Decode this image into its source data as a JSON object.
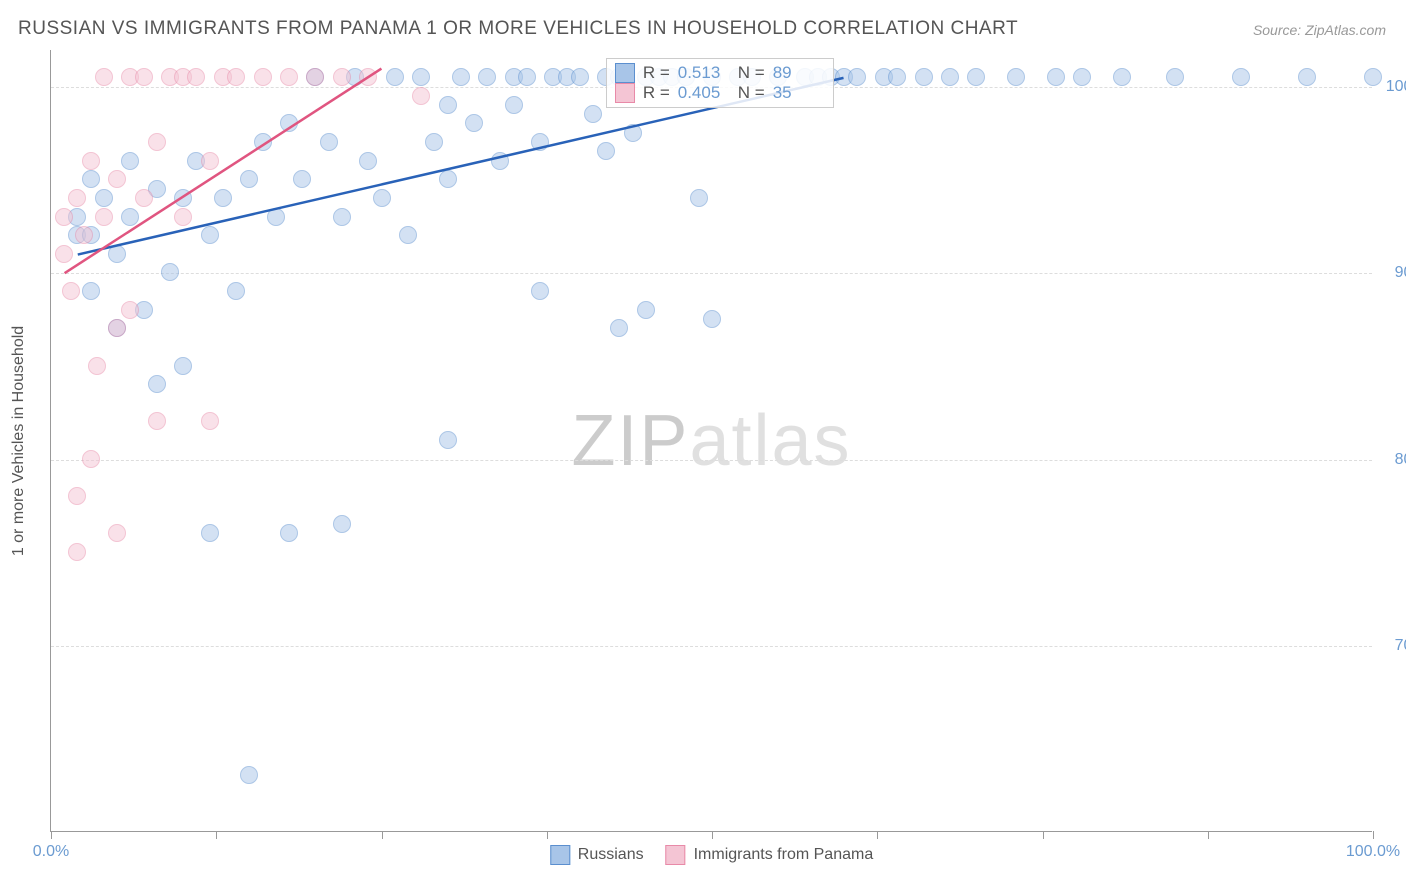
{
  "title": "RUSSIAN VS IMMIGRANTS FROM PANAMA 1 OR MORE VEHICLES IN HOUSEHOLD CORRELATION CHART",
  "source": "Source: ZipAtlas.com",
  "ylabel": "1 or more Vehicles in Household",
  "watermark": {
    "zip": "ZIP",
    "atlas": "atlas"
  },
  "chart": {
    "type": "scatter",
    "xlim": [
      0,
      100
    ],
    "ylim": [
      60,
      102
    ],
    "yticks": [
      70,
      80,
      90,
      100
    ],
    "ytick_labels": [
      "70.0%",
      "80.0%",
      "90.0%",
      "100.0%"
    ],
    "xticks": [
      0,
      12.5,
      25,
      37.5,
      50,
      62.5,
      75,
      87.5,
      100
    ],
    "xtick_labels": {
      "0": "0.0%",
      "100": "100.0%"
    },
    "background_color": "#ffffff",
    "grid_color": "#dddddd",
    "marker_radius": 9,
    "marker_opacity": 0.5,
    "marker_stroke_width": 1.5,
    "series": [
      {
        "name": "Russians",
        "fill_color": "#a8c5e8",
        "stroke_color": "#5b8fcf",
        "line_color": "#2962b8",
        "R": "0.513",
        "N": "89",
        "trend": {
          "x1": 2,
          "y1": 91,
          "x2": 60,
          "y2": 100.5
        },
        "points": [
          [
            2,
            92
          ],
          [
            2,
            93
          ],
          [
            3,
            95
          ],
          [
            3,
            92
          ],
          [
            3,
            89
          ],
          [
            4,
            94
          ],
          [
            5,
            91
          ],
          [
            5,
            87
          ],
          [
            6,
            93
          ],
          [
            6,
            96
          ],
          [
            7,
            88
          ],
          [
            8,
            94.5
          ],
          [
            8,
            84
          ],
          [
            9,
            90
          ],
          [
            10,
            94
          ],
          [
            10,
            85
          ],
          [
            11,
            96
          ],
          [
            12,
            92
          ],
          [
            12,
            76
          ],
          [
            13,
            94
          ],
          [
            14,
            89
          ],
          [
            15,
            95
          ],
          [
            15,
            63
          ],
          [
            16,
            97
          ],
          [
            17,
            93
          ],
          [
            18,
            98
          ],
          [
            18,
            76
          ],
          [
            19,
            95
          ],
          [
            20,
            100.5
          ],
          [
            21,
            97
          ],
          [
            22,
            93
          ],
          [
            22,
            76.5
          ],
          [
            23,
            100.5
          ],
          [
            24,
            96
          ],
          [
            25,
            94
          ],
          [
            26,
            100.5
          ],
          [
            27,
            92
          ],
          [
            28,
            100.5
          ],
          [
            29,
            97
          ],
          [
            30,
            95
          ],
          [
            30,
            81
          ],
          [
            31,
            100.5
          ],
          [
            32,
            98
          ],
          [
            33,
            100.5
          ],
          [
            34,
            96
          ],
          [
            35,
            100.5
          ],
          [
            36,
            100.5
          ],
          [
            37,
            97
          ],
          [
            37,
            89
          ],
          [
            38,
            100.5
          ],
          [
            39,
            100.5
          ],
          [
            40,
            100.5
          ],
          [
            41,
            98.5
          ],
          [
            42,
            100.5
          ],
          [
            43,
            100.5
          ],
          [
            43,
            87
          ],
          [
            44,
            97.5
          ],
          [
            45,
            100.5
          ],
          [
            45,
            88
          ],
          [
            46,
            100.5
          ],
          [
            47,
            100.5
          ],
          [
            48,
            100.5
          ],
          [
            49,
            94
          ],
          [
            50,
            100.5
          ],
          [
            50,
            87.5
          ],
          [
            52,
            100.5
          ],
          [
            53,
            100.5
          ],
          [
            55,
            100.5
          ],
          [
            57,
            100.5
          ],
          [
            58,
            100.5
          ],
          [
            59,
            100.5
          ],
          [
            60,
            100.5
          ],
          [
            61,
            100.5
          ],
          [
            63,
            100.5
          ],
          [
            64,
            100.5
          ],
          [
            66,
            100.5
          ],
          [
            68,
            100.5
          ],
          [
            70,
            100.5
          ],
          [
            73,
            100.5
          ],
          [
            76,
            100.5
          ],
          [
            78,
            100.5
          ],
          [
            81,
            100.5
          ],
          [
            85,
            100.5
          ],
          [
            90,
            100.5
          ],
          [
            95,
            100.5
          ],
          [
            100,
            100.5
          ],
          [
            42,
            96.5
          ],
          [
            35,
            99
          ],
          [
            30,
            99
          ]
        ]
      },
      {
        "name": "Immigrants from Panama",
        "fill_color": "#f4c5d4",
        "stroke_color": "#e88aa8",
        "line_color": "#e05580",
        "R": "0.405",
        "N": "35",
        "trend": {
          "x1": 1,
          "y1": 90,
          "x2": 25,
          "y2": 101
        },
        "points": [
          [
            1,
            91
          ],
          [
            1,
            93
          ],
          [
            1.5,
            89
          ],
          [
            2,
            94
          ],
          [
            2,
            78
          ],
          [
            2,
            75
          ],
          [
            2.5,
            92
          ],
          [
            3,
            96
          ],
          [
            3,
            80
          ],
          [
            3.5,
            85
          ],
          [
            4,
            93
          ],
          [
            4,
            100.5
          ],
          [
            5,
            95
          ],
          [
            5,
            87
          ],
          [
            5,
            76
          ],
          [
            6,
            100.5
          ],
          [
            6,
            88
          ],
          [
            7,
            94
          ],
          [
            7,
            100.5
          ],
          [
            8,
            97
          ],
          [
            8,
            82
          ],
          [
            9,
            100.5
          ],
          [
            10,
            93
          ],
          [
            10,
            100.5
          ],
          [
            11,
            100.5
          ],
          [
            12,
            96
          ],
          [
            12,
            82
          ],
          [
            13,
            100.5
          ],
          [
            14,
            100.5
          ],
          [
            16,
            100.5
          ],
          [
            18,
            100.5
          ],
          [
            20,
            100.5
          ],
          [
            22,
            100.5
          ],
          [
            24,
            100.5
          ],
          [
            28,
            99.5
          ]
        ]
      }
    ]
  },
  "stats_box": {
    "r_label": "R =",
    "n_label": "N ="
  },
  "bottom_legend": [
    {
      "label": "Russians",
      "fill": "#a8c5e8",
      "stroke": "#5b8fcf"
    },
    {
      "label": "Immigrants from Panama",
      "fill": "#f4c5d4",
      "stroke": "#e88aa8"
    }
  ]
}
